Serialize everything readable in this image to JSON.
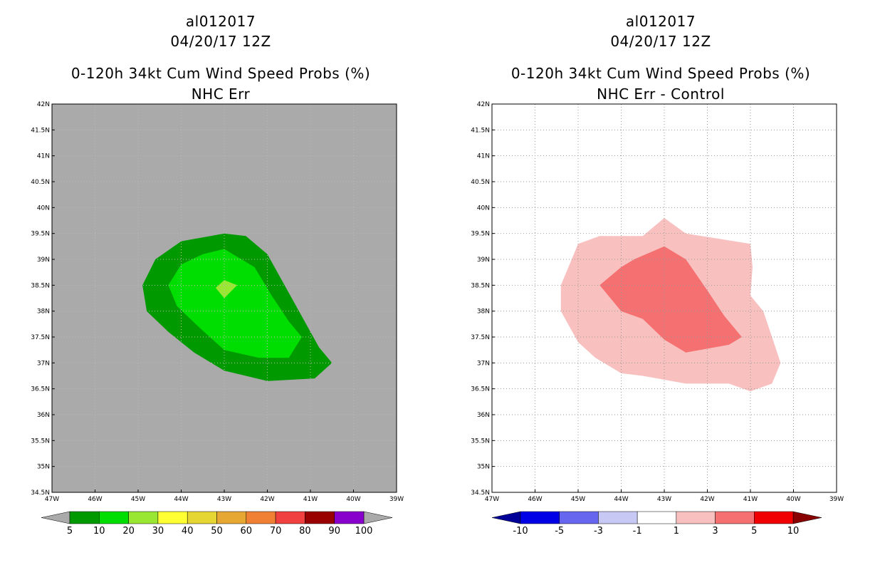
{
  "left_panel": {
    "title_line1": "al012017",
    "title_line2": "04/20/17 12Z",
    "title_line3": "0-120h 34kt Cum Wind Speed Probs (%)",
    "title_line4": "NHC Err",
    "background_color": "#aaaaaa",
    "colorbar": {
      "labels": [
        "5",
        "10",
        "20",
        "30",
        "40",
        "50",
        "60",
        "70",
        "80",
        "90",
        "100"
      ],
      "colors": [
        "#009900",
        "#00dd00",
        "#99e633",
        "#ffff33",
        "#e6d633",
        "#e6a833",
        "#f08033",
        "#f04040",
        "#990000",
        "#8800cc"
      ],
      "under_color": "#aaaaaa",
      "over_color": "#aaaaaa"
    }
  },
  "right_panel": {
    "title_line1": "al012017",
    "title_line2": "04/20/17 12Z",
    "title_line3": "0-120h 34kt Cum Wind Speed Probs (%)",
    "title_line4": "NHC Err - Control",
    "background_color": "#ffffff",
    "colorbar": {
      "labels": [
        "-10",
        "-5",
        "-3",
        "-1",
        "1",
        "3",
        "5",
        "10"
      ],
      "colors": [
        "#0000e6",
        "#6666ee",
        "#c8c8f5",
        "#ffffff",
        "#f9c0c0",
        "#f57070",
        "#f00000"
      ],
      "under_color": "#000099",
      "over_color": "#880000"
    }
  },
  "axes": {
    "lon_labels": [
      "47W",
      "46W",
      "45W",
      "44W",
      "43W",
      "42W",
      "41W",
      "40W",
      "39W"
    ],
    "lat_labels": [
      "42N",
      "41.5N",
      "41N",
      "40.5N",
      "40N",
      "39.5N",
      "39N",
      "38.5N",
      "38N",
      "37.5N",
      "37N",
      "36.5N",
      "36N",
      "35.5N",
      "35N",
      "34.5N"
    ]
  },
  "map_data": {
    "lon_range": [
      -47,
      -39
    ],
    "lat_range": [
      34.5,
      42
    ],
    "left_contours": [
      {
        "level": "5-10",
        "color": "#009900",
        "points": [
          [
            -44.9,
            38.5
          ],
          [
            -44.6,
            39.0
          ],
          [
            -44.0,
            39.35
          ],
          [
            -43.0,
            39.5
          ],
          [
            -42.5,
            39.45
          ],
          [
            -42.0,
            39.1
          ],
          [
            -41.6,
            38.5
          ],
          [
            -41.2,
            37.9
          ],
          [
            -40.8,
            37.3
          ],
          [
            -40.5,
            37.0
          ],
          [
            -40.9,
            36.7
          ],
          [
            -42.0,
            36.65
          ],
          [
            -43.0,
            36.85
          ],
          [
            -43.7,
            37.2
          ],
          [
            -44.3,
            37.6
          ],
          [
            -44.8,
            38.0
          ]
        ]
      },
      {
        "level": "10-20",
        "color": "#00dd00",
        "points": [
          [
            -44.3,
            38.5
          ],
          [
            -44.0,
            38.9
          ],
          [
            -43.5,
            39.1
          ],
          [
            -43.0,
            39.2
          ],
          [
            -42.3,
            38.85
          ],
          [
            -41.9,
            38.3
          ],
          [
            -41.5,
            37.8
          ],
          [
            -41.2,
            37.5
          ],
          [
            -41.5,
            37.1
          ],
          [
            -42.2,
            37.1
          ],
          [
            -43.0,
            37.25
          ],
          [
            -43.6,
            37.7
          ],
          [
            -44.1,
            38.1
          ]
        ]
      },
      {
        "level": "20-30",
        "color": "#99e633",
        "points": [
          [
            -43.2,
            38.45
          ],
          [
            -43.0,
            38.6
          ],
          [
            -42.7,
            38.5
          ],
          [
            -43.0,
            38.25
          ]
        ]
      }
    ],
    "right_contours": [
      {
        "level": "1-3",
        "color": "#f9c0c0",
        "points": [
          [
            -45.4,
            38.0
          ],
          [
            -45.4,
            38.5
          ],
          [
            -45.0,
            39.3
          ],
          [
            -44.5,
            39.45
          ],
          [
            -43.5,
            39.45
          ],
          [
            -43.0,
            39.8
          ],
          [
            -42.5,
            39.5
          ],
          [
            -41.0,
            39.3
          ],
          [
            -40.95,
            38.85
          ],
          [
            -41.0,
            38.3
          ],
          [
            -40.7,
            38.0
          ],
          [
            -40.5,
            37.5
          ],
          [
            -40.3,
            37.0
          ],
          [
            -40.5,
            36.6
          ],
          [
            -41.0,
            36.45
          ],
          [
            -41.5,
            36.6
          ],
          [
            -42.5,
            36.6
          ],
          [
            -43.5,
            36.75
          ],
          [
            -44.0,
            36.8
          ],
          [
            -44.6,
            37.1
          ],
          [
            -45.0,
            37.4
          ]
        ]
      },
      {
        "level": "3-5",
        "color": "#f57070",
        "points": [
          [
            -44.5,
            38.5
          ],
          [
            -44.0,
            38.85
          ],
          [
            -43.7,
            39.0
          ],
          [
            -43.0,
            39.25
          ],
          [
            -42.5,
            39.0
          ],
          [
            -42.0,
            38.4
          ],
          [
            -41.6,
            37.9
          ],
          [
            -41.2,
            37.5
          ],
          [
            -41.5,
            37.35
          ],
          [
            -42.5,
            37.2
          ],
          [
            -43.0,
            37.45
          ],
          [
            -43.5,
            37.85
          ],
          [
            -44.0,
            38.0
          ]
        ]
      }
    ]
  }
}
